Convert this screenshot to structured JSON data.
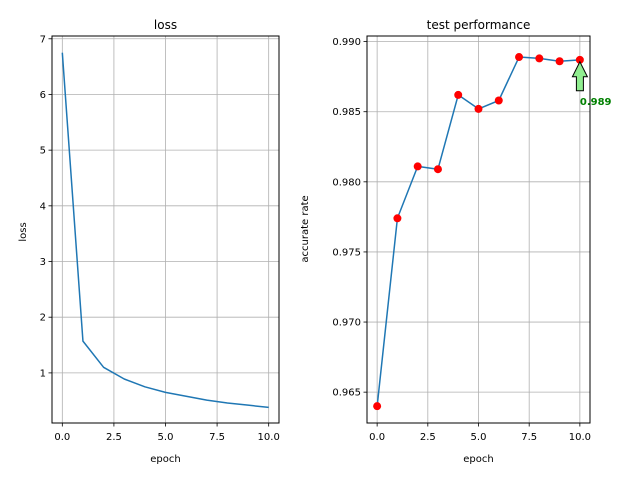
{
  "colors": {
    "line": "#1f77b4",
    "marker": "#ff0000",
    "annotation_text": "#008000",
    "arrow_fill": "#90ee90",
    "grid": "#b0b0b0"
  },
  "chart_data": [
    {
      "type": "line",
      "title": "loss",
      "xlabel": "epoch",
      "ylabel": "loss",
      "xlim": [
        -0.5,
        10.5
      ],
      "ylim": [
        0.1,
        7.05
      ],
      "xticks": [
        0,
        2.5,
        5,
        7.5,
        10
      ],
      "xtick_labels": [
        "0.0",
        "2.5",
        "5.0",
        "7.5",
        "10.0"
      ],
      "yticks": [
        1,
        2,
        3,
        4,
        5,
        6,
        7
      ],
      "ytick_labels": [
        "1",
        "2",
        "3",
        "4",
        "5",
        "6",
        "7"
      ],
      "grid": true,
      "series": [
        {
          "x": [
            0,
            1,
            2,
            3,
            4,
            5,
            6,
            7,
            8,
            9,
            10
          ],
          "values": [
            6.75,
            1.57,
            1.1,
            0.89,
            0.75,
            0.65,
            0.58,
            0.51,
            0.46,
            0.42,
            0.38
          ]
        }
      ]
    },
    {
      "type": "line",
      "title": "test performance",
      "xlabel": "epoch",
      "ylabel": "accurate rate",
      "xlim": [
        -0.5,
        10.5
      ],
      "ylim": [
        0.9628,
        0.9904
      ],
      "xticks": [
        0,
        2.5,
        5,
        7.5,
        10
      ],
      "xtick_labels": [
        "0.0",
        "2.5",
        "5.0",
        "7.5",
        "10.0"
      ],
      "yticks": [
        0.965,
        0.97,
        0.975,
        0.98,
        0.985,
        0.99
      ],
      "ytick_labels": [
        "0.965",
        "0.970",
        "0.975",
        "0.980",
        "0.985",
        "0.990"
      ],
      "grid": true,
      "markers": true,
      "series": [
        {
          "x": [
            0,
            1,
            2,
            3,
            4,
            5,
            6,
            7,
            8,
            9,
            10
          ],
          "values": [
            0.964,
            0.9774,
            0.9811,
            0.9809,
            0.9862,
            0.9852,
            0.9858,
            0.9889,
            0.9888,
            0.9886,
            0.9887
          ]
        }
      ],
      "annotation": {
        "text": "0.989",
        "x": 10,
        "y": 0.9887
      }
    }
  ]
}
